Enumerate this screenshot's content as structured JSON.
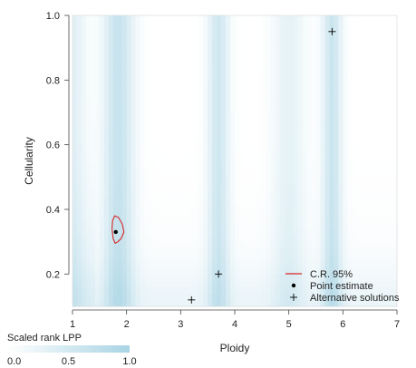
{
  "chart_data": {
    "type": "heatmap",
    "title": "",
    "xlabel": "Ploidy",
    "ylabel": "Cellularity",
    "xlim": [
      1,
      7
    ],
    "ylim": [
      0.1,
      1.0
    ],
    "x_ticks": [
      1,
      2,
      3,
      4,
      5,
      6,
      7
    ],
    "y_ticks": [
      0.2,
      0.4,
      0.6,
      0.8,
      1.0
    ],
    "x_tick_labels": [
      "1",
      "2",
      "3",
      "4",
      "5",
      "6",
      "7"
    ],
    "y_tick_labels": [
      "0.2",
      "0.4",
      "0.6",
      "0.8",
      "1.0"
    ],
    "heatmap_color_low": "#ffffff",
    "heatmap_color_high": "#a9d4e4",
    "heatmap_bands": [
      {
        "center_ploidy": 1.0,
        "spread": 0.25,
        "intensity": 0.35
      },
      {
        "center_ploidy": 1.85,
        "spread": 0.28,
        "intensity": 0.65
      },
      {
        "center_ploidy": 3.7,
        "spread": 0.2,
        "intensity": 0.55
      },
      {
        "center_ploidy": 5.0,
        "spread": 0.3,
        "intensity": 0.3
      },
      {
        "center_ploidy": 5.8,
        "spread": 0.18,
        "intensity": 0.6
      }
    ],
    "point_estimate": {
      "ploidy": 1.8,
      "cellularity": 0.33
    },
    "credible_region_95": [
      [
        1.78,
        0.38
      ],
      [
        1.85,
        0.375
      ],
      [
        1.92,
        0.355
      ],
      [
        1.95,
        0.33
      ],
      [
        1.9,
        0.31
      ],
      [
        1.84,
        0.3
      ],
      [
        1.79,
        0.295
      ],
      [
        1.75,
        0.31
      ],
      [
        1.73,
        0.34
      ],
      [
        1.74,
        0.365
      ]
    ],
    "alternative_solutions": [
      {
        "ploidy": 5.8,
        "cellularity": 0.95
      },
      {
        "ploidy": 3.7,
        "cellularity": 0.2
      },
      {
        "ploidy": 3.2,
        "cellularity": 0.12
      }
    ],
    "legend": {
      "position": "bottom-right",
      "entries": [
        {
          "symbol": "line",
          "color": "#d62728",
          "label": "C.R. 95%"
        },
        {
          "symbol": "dot",
          "color": "#000000",
          "label": "Point estimate"
        },
        {
          "symbol": "plus",
          "color": "#000000",
          "label": "Alternative solutions"
        }
      ]
    },
    "colorbar": {
      "title": "Scaled rank LPP",
      "min": 0.0,
      "max": 1.0,
      "tick_values": [
        0.0,
        0.5,
        1.0
      ],
      "tick_labels": [
        "0.0",
        "0.5",
        "1.0"
      ]
    },
    "grid": false
  }
}
